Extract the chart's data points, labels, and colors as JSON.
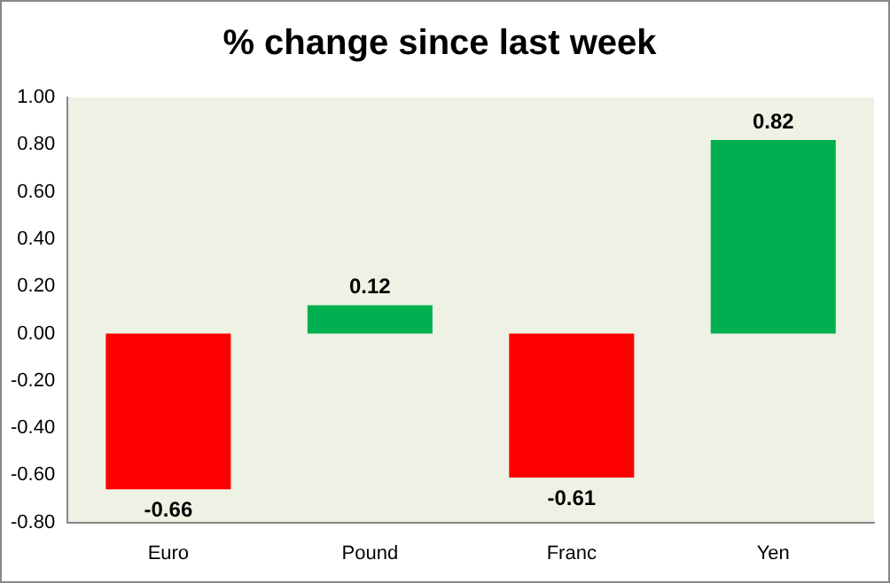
{
  "chart_data": {
    "type": "bar",
    "title": "% change since last week",
    "categories": [
      "Euro",
      "Pound",
      "Franc",
      "Yen"
    ],
    "values": [
      -0.66,
      0.12,
      -0.61,
      0.82
    ],
    "colors": [
      "#ff0000",
      "#00b050",
      "#ff0000",
      "#00b050"
    ],
    "ylim": [
      -0.8,
      1.0
    ],
    "yticks": [
      {
        "value": -0.8,
        "label": "-0.80"
      },
      {
        "value": -0.6,
        "label": "-0.60"
      },
      {
        "value": -0.4,
        "label": "-0.40"
      },
      {
        "value": -0.2,
        "label": "-0.20"
      },
      {
        "value": 0,
        "label": "0.00"
      },
      {
        "value": 0.2,
        "label": "0.20"
      },
      {
        "value": 0.4,
        "label": "0.40"
      },
      {
        "value": 0.6,
        "label": "0.60"
      },
      {
        "value": 0.8,
        "label": "0.80"
      },
      {
        "value": 1.0,
        "label": "1.00"
      }
    ],
    "data_labels": true,
    "grid": false,
    "legend": false
  }
}
